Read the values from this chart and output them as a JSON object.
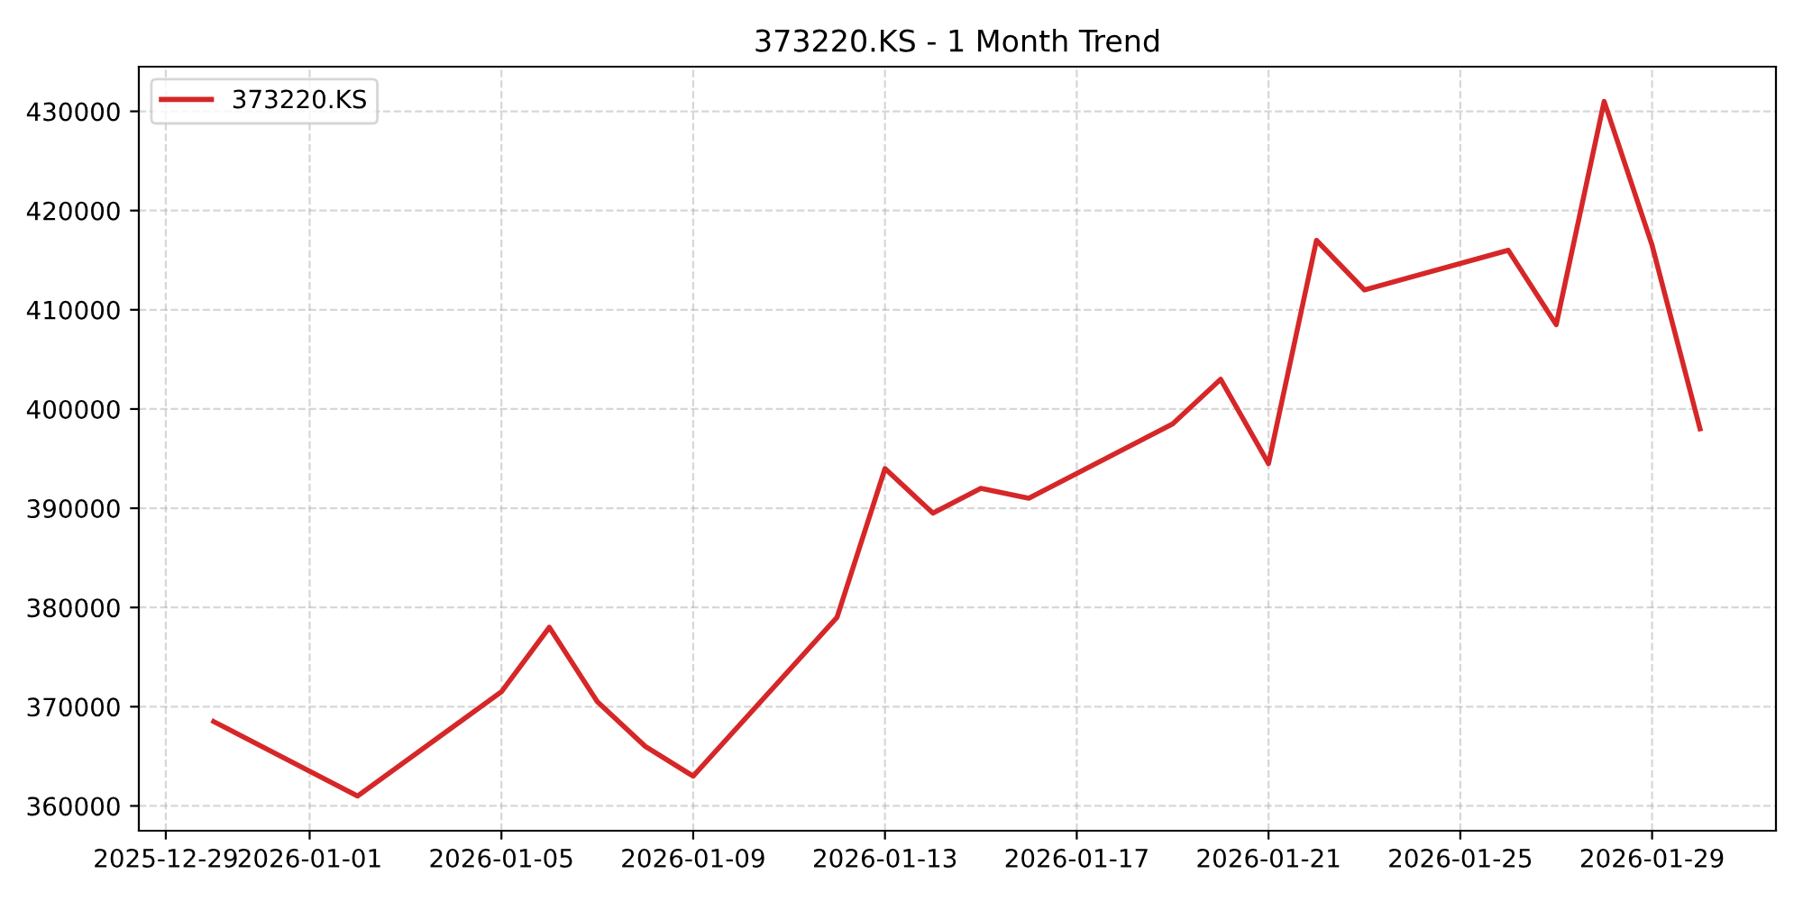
{
  "chart_data": {
    "type": "line",
    "title": "373220.KS - 1 Month Trend",
    "x": [
      "2025-12-30",
      "2026-01-02",
      "2026-01-05",
      "2026-01-06",
      "2026-01-07",
      "2026-01-08",
      "2026-01-09",
      "2026-01-12",
      "2026-01-13",
      "2026-01-14",
      "2026-01-15",
      "2026-01-16",
      "2026-01-19",
      "2026-01-20",
      "2026-01-21",
      "2026-01-22",
      "2026-01-23",
      "2026-01-26",
      "2026-01-27",
      "2026-01-28",
      "2026-01-29",
      "2026-01-30"
    ],
    "series": [
      {
        "name": "373220.KS",
        "color": "#d62728",
        "values": [
          368500,
          361000,
          371500,
          378000,
          370500,
          366000,
          363000,
          379000,
          394000,
          389500,
          392000,
          391000,
          398500,
          403000,
          394500,
          417000,
          412000,
          416000,
          408500,
          431000,
          416500,
          398000
        ]
      }
    ],
    "xlim": [
      "2025-12-28T10:30",
      "2026-01-31T14:00"
    ],
    "xticks": [
      "2025-12-29",
      "2026-01-01",
      "2026-01-05",
      "2026-01-09",
      "2026-01-13",
      "2026-01-17",
      "2026-01-21",
      "2026-01-25",
      "2026-01-29"
    ],
    "ylim": [
      357500,
      434500
    ],
    "yticks": [
      360000,
      370000,
      380000,
      390000,
      400000,
      410000,
      420000,
      430000
    ],
    "grid": true,
    "legend": "top left",
    "line_style": "solid",
    "marker": "none"
  }
}
